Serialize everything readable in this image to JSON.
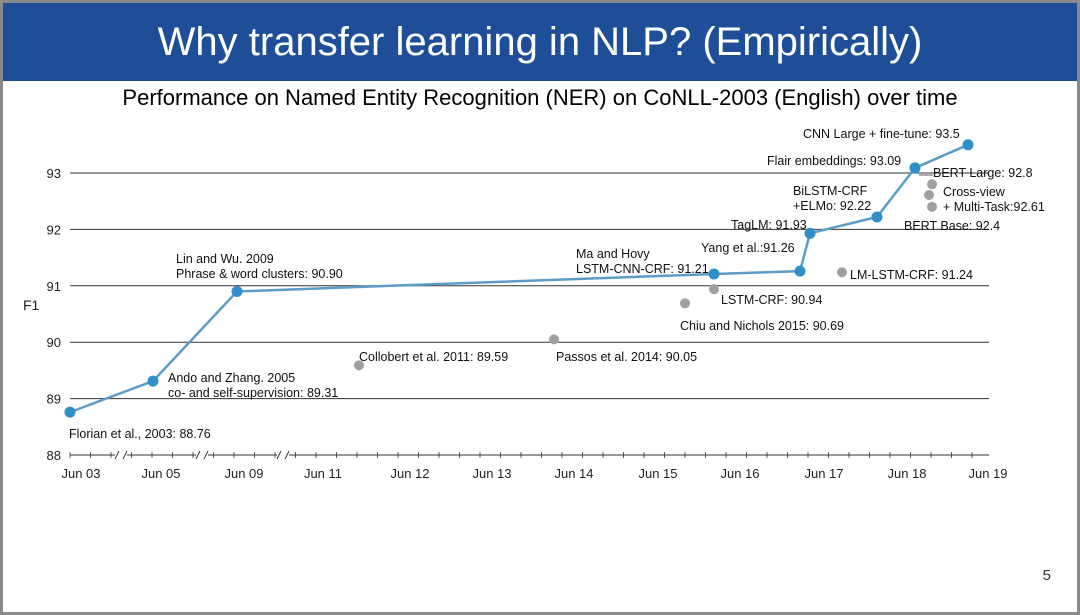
{
  "slide": {
    "title": "Why transfer learning in NLP? (Empirically)",
    "page_number": "5"
  },
  "colors": {
    "header": "#1f4e98",
    "line": "#5b9cc9",
    "point": "#2f8fc8",
    "other_point": "#a0a0a0",
    "grid": "#333333"
  },
  "chart_data": {
    "type": "line",
    "title": "Performance on Named Entity Recognition (NER) on CoNLL-2003 (English) over time",
    "ylabel": "F1",
    "xlabel": "",
    "ylim": [
      88,
      93.5
    ],
    "yticks": [
      "88",
      "89",
      "90",
      "91",
      "92",
      "93"
    ],
    "gridlines_at": [
      89,
      90,
      91,
      92,
      93
    ],
    "xticks": [
      "Jun 03",
      "Jun 05",
      "Jun 09",
      "Jun 11",
      "Jun 12",
      "Jun 13",
      "Jun 14",
      "Jun 15",
      "Jun 16",
      "Jun 17",
      "Jun 18",
      "Jun 19"
    ],
    "axis_breaks": [
      "between Jun 03 and Jun 05",
      "between Jun 05 and Jun 09",
      "between Jun 09 and Jun 11"
    ],
    "series": [
      {
        "name": "",
        "style": "line-with-markers",
        "points": [
          {
            "x": "Jun 03",
            "y": 88.76,
            "label": [
              "Florian et al., 2003: 88.76"
            ]
          },
          {
            "x": "Jun 05",
            "y": 89.31,
            "label": [
              "Ando and Zhang. 2005",
              "co- and self-supervision: 89.31"
            ]
          },
          {
            "x": "Jun 09",
            "y": 90.9,
            "label": [
              "Lin and Wu. 2009",
              "Phrase & word clusters: 90.90"
            ]
          },
          {
            "x": "Jun 16 (early)",
            "y": 91.21,
            "label": [
              "Ma and Hovy",
              "LSTM-CNN-CRF: 91.21"
            ]
          },
          {
            "x": "Jun 17 (early)",
            "y": 91.26,
            "label": [
              "Yang et al.:91.26"
            ]
          },
          {
            "x": "Jun 17",
            "y": 91.93,
            "label": [
              "TagLM: 91.93"
            ]
          },
          {
            "x": "Jun 18 (early)",
            "y": 92.22,
            "label": [
              "BiLSTM-CRF",
              "+ELMo: 92.22"
            ]
          },
          {
            "x": "Jun 18",
            "y": 93.09,
            "label": [
              "Flair embeddings: 93.09"
            ]
          },
          {
            "x": "Jun 19 (early)",
            "y": 93.5,
            "label": [
              "CNN Large + fine-tune: 93.5"
            ]
          }
        ]
      },
      {
        "name": "",
        "style": "markers-only",
        "points": [
          {
            "x": "Jun 11 (late)",
            "y": 89.59,
            "label": [
              "Collobert et al. 2011: 89.59"
            ]
          },
          {
            "x": "Jun 14 (early)",
            "y": 90.05,
            "label": [
              "Passos et al. 2014: 90.05"
            ]
          },
          {
            "x": "Jun 15 (late)",
            "y": 90.69,
            "label": [
              "Chiu and Nichols 2015: 90.69"
            ]
          },
          {
            "x": "Jun 16 (early)",
            "y": 90.94,
            "label": [
              "LSTM-CRF: 90.94"
            ]
          },
          {
            "x": "Jun 17 (mid)",
            "y": 91.24,
            "label": [
              "LM-LSTM-CRF: 91.24"
            ]
          },
          {
            "x": "Jun 18 (late)",
            "y": 92.4,
            "label": [
              "BERT Base: 92.4"
            ]
          },
          {
            "x": "Jun 18 (late)",
            "y": 92.61,
            "label": [
              "Cross-view",
              "+ Multi-Task:92.61"
            ]
          },
          {
            "x": "Jun 18 (late)",
            "y": 92.8,
            "label": [
              "BERT Large: 92.8"
            ]
          }
        ]
      }
    ]
  }
}
